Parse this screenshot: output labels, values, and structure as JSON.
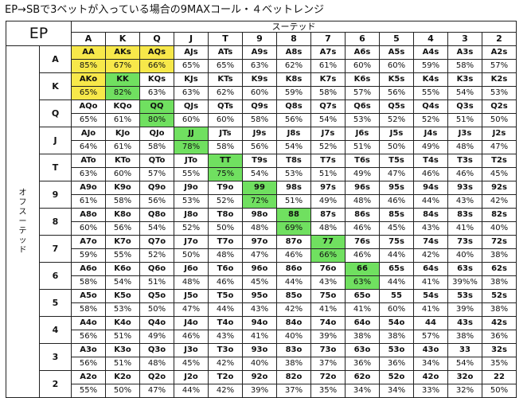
{
  "title": "EP→SBで3ベットが入っている場合の9MAXコール・４ベットレンジ",
  "corner_label": "EP",
  "suited_label": "スーテッド",
  "offsuit_label": "オフスーテッド",
  "ranks": [
    "A",
    "K",
    "Q",
    "J",
    "T",
    "9",
    "8",
    "7",
    "6",
    "5",
    "4",
    "3",
    "2"
  ],
  "colors": {
    "yellow_highlight": "#f7e84a",
    "green_highlight": "#70e060"
  },
  "rows": [
    {
      "rank": "A",
      "cells": [
        {
          "hand": "AA",
          "pct": "85%",
          "hl": "yellow"
        },
        {
          "hand": "AKs",
          "pct": "67%",
          "hl": "yellow"
        },
        {
          "hand": "AQs",
          "pct": "66%",
          "hl": "yellow"
        },
        {
          "hand": "AJs",
          "pct": "65%"
        },
        {
          "hand": "ATs",
          "pct": "65%"
        },
        {
          "hand": "A9s",
          "pct": "63%"
        },
        {
          "hand": "A8s",
          "pct": "62%"
        },
        {
          "hand": "A7s",
          "pct": "61%"
        },
        {
          "hand": "A6s",
          "pct": "60%"
        },
        {
          "hand": "A5s",
          "pct": "60%"
        },
        {
          "hand": "A4s",
          "pct": "59%"
        },
        {
          "hand": "A3s",
          "pct": "58%"
        },
        {
          "hand": "A2s",
          "pct": "57%"
        }
      ]
    },
    {
      "rank": "K",
      "cells": [
        {
          "hand": "AKo",
          "pct": "65%",
          "hl": "yellow"
        },
        {
          "hand": "KK",
          "pct": "82%",
          "hl": "green"
        },
        {
          "hand": "KQs",
          "pct": "63%"
        },
        {
          "hand": "KJs",
          "pct": "63%"
        },
        {
          "hand": "KTs",
          "pct": "62%"
        },
        {
          "hand": "K9s",
          "pct": "60%"
        },
        {
          "hand": "K8s",
          "pct": "59%"
        },
        {
          "hand": "K7s",
          "pct": "58%"
        },
        {
          "hand": "K6s",
          "pct": "57%"
        },
        {
          "hand": "K5s",
          "pct": "56%"
        },
        {
          "hand": "K4s",
          "pct": "55%"
        },
        {
          "hand": "K3s",
          "pct": "54%"
        },
        {
          "hand": "K2s",
          "pct": "53%"
        }
      ]
    },
    {
      "rank": "Q",
      "cells": [
        {
          "hand": "AQo",
          "pct": "65%"
        },
        {
          "hand": "KQo",
          "pct": "61%"
        },
        {
          "hand": "QQ",
          "pct": "80%",
          "hl": "green"
        },
        {
          "hand": "QJs",
          "pct": "60%"
        },
        {
          "hand": "QTs",
          "pct": "60%"
        },
        {
          "hand": "Q9s",
          "pct": "58%"
        },
        {
          "hand": "Q8s",
          "pct": "56%"
        },
        {
          "hand": "Q7s",
          "pct": "54%"
        },
        {
          "hand": "Q6s",
          "pct": "53%"
        },
        {
          "hand": "Q5s",
          "pct": "52%"
        },
        {
          "hand": "Q4s",
          "pct": "52%"
        },
        {
          "hand": "Q3s",
          "pct": "51%"
        },
        {
          "hand": "Q2s",
          "pct": "50%"
        }
      ]
    },
    {
      "rank": "J",
      "cells": [
        {
          "hand": "AJo",
          "pct": "64%"
        },
        {
          "hand": "KJo",
          "pct": "61%"
        },
        {
          "hand": "QJo",
          "pct": "58%"
        },
        {
          "hand": "JJ",
          "pct": "78%",
          "hl": "green"
        },
        {
          "hand": "JTs",
          "pct": "58%"
        },
        {
          "hand": "J9s",
          "pct": "56%"
        },
        {
          "hand": "J8s",
          "pct": "54%"
        },
        {
          "hand": "J7s",
          "pct": "52%"
        },
        {
          "hand": "J6s",
          "pct": "51%"
        },
        {
          "hand": "J5s",
          "pct": "50%"
        },
        {
          "hand": "J4s",
          "pct": "49%"
        },
        {
          "hand": "J3s",
          "pct": "48%"
        },
        {
          "hand": "J2s",
          "pct": "47%"
        }
      ]
    },
    {
      "rank": "T",
      "cells": [
        {
          "hand": "ATo",
          "pct": "63%"
        },
        {
          "hand": "KTo",
          "pct": "60%"
        },
        {
          "hand": "QTo",
          "pct": "57%"
        },
        {
          "hand": "JTo",
          "pct": "55%"
        },
        {
          "hand": "TT",
          "pct": "75%",
          "hl": "green"
        },
        {
          "hand": "T9s",
          "pct": "54%"
        },
        {
          "hand": "T8s",
          "pct": "53%"
        },
        {
          "hand": "T7s",
          "pct": "51%"
        },
        {
          "hand": "T6s",
          "pct": "49%"
        },
        {
          "hand": "T5s",
          "pct": "47%"
        },
        {
          "hand": "T4s",
          "pct": "46%"
        },
        {
          "hand": "T3s",
          "pct": "46%"
        },
        {
          "hand": "T2s",
          "pct": "45%"
        }
      ]
    },
    {
      "rank": "9",
      "cells": [
        {
          "hand": "A9o",
          "pct": "61%"
        },
        {
          "hand": "K9o",
          "pct": "58%"
        },
        {
          "hand": "Q9o",
          "pct": "56%"
        },
        {
          "hand": "J9o",
          "pct": "53%"
        },
        {
          "hand": "T9o",
          "pct": "52%"
        },
        {
          "hand": "99",
          "pct": "72%",
          "hl": "green"
        },
        {
          "hand": "98s",
          "pct": "51%"
        },
        {
          "hand": "97s",
          "pct": "49%"
        },
        {
          "hand": "96s",
          "pct": "48%"
        },
        {
          "hand": "95s",
          "pct": "46%"
        },
        {
          "hand": "94s",
          "pct": "44%"
        },
        {
          "hand": "93s",
          "pct": "43%"
        },
        {
          "hand": "92s",
          "pct": "42%"
        }
      ]
    },
    {
      "rank": "8",
      "cells": [
        {
          "hand": "A8o",
          "pct": "60%"
        },
        {
          "hand": "K8o",
          "pct": "56%"
        },
        {
          "hand": "Q8o",
          "pct": "54%"
        },
        {
          "hand": "J8o",
          "pct": "52%"
        },
        {
          "hand": "T8o",
          "pct": "50%"
        },
        {
          "hand": "98o",
          "pct": "48%"
        },
        {
          "hand": "88",
          "pct": "69%",
          "hl": "green"
        },
        {
          "hand": "87s",
          "pct": "48%"
        },
        {
          "hand": "86s",
          "pct": "46%"
        },
        {
          "hand": "85s",
          "pct": "45%"
        },
        {
          "hand": "84s",
          "pct": "43%"
        },
        {
          "hand": "83s",
          "pct": "41%"
        },
        {
          "hand": "82s",
          "pct": "40%"
        }
      ]
    },
    {
      "rank": "7",
      "cells": [
        {
          "hand": "A7o",
          "pct": "59%"
        },
        {
          "hand": "K7o",
          "pct": "55%"
        },
        {
          "hand": "Q7o",
          "pct": "52%"
        },
        {
          "hand": "J7o",
          "pct": "50%"
        },
        {
          "hand": "T7o",
          "pct": "48%"
        },
        {
          "hand": "97o",
          "pct": "47%"
        },
        {
          "hand": "87o",
          "pct": "46%"
        },
        {
          "hand": "77",
          "pct": "66%",
          "hl": "green"
        },
        {
          "hand": "76s",
          "pct": "46%"
        },
        {
          "hand": "75s",
          "pct": "44%"
        },
        {
          "hand": "74s",
          "pct": "42%"
        },
        {
          "hand": "73s",
          "pct": "40%"
        },
        {
          "hand": "72s",
          "pct": "38%"
        }
      ]
    },
    {
      "rank": "6",
      "cells": [
        {
          "hand": "A6o",
          "pct": "58%"
        },
        {
          "hand": "K6o",
          "pct": "54%"
        },
        {
          "hand": "Q6o",
          "pct": "51%"
        },
        {
          "hand": "J6o",
          "pct": "48%"
        },
        {
          "hand": "T6o",
          "pct": "46%"
        },
        {
          "hand": "96o",
          "pct": "45%"
        },
        {
          "hand": "86o",
          "pct": "44%"
        },
        {
          "hand": "76o",
          "pct": "43%"
        },
        {
          "hand": "66",
          "pct": "63%",
          "hl": "green"
        },
        {
          "hand": "65s",
          "pct": "44%"
        },
        {
          "hand": "64s",
          "pct": "41%"
        },
        {
          "hand": "63s",
          "pct": "39%%"
        },
        {
          "hand": "62s",
          "pct": "38%"
        }
      ]
    },
    {
      "rank": "5",
      "cells": [
        {
          "hand": "A5o",
          "pct": "58%"
        },
        {
          "hand": "K5o",
          "pct": "53%"
        },
        {
          "hand": "Q5o",
          "pct": "50%"
        },
        {
          "hand": "J5o",
          "pct": "47%"
        },
        {
          "hand": "T5o",
          "pct": "44%"
        },
        {
          "hand": "95o",
          "pct": "43%"
        },
        {
          "hand": "85o",
          "pct": "42%"
        },
        {
          "hand": "75o",
          "pct": "41%"
        },
        {
          "hand": "65o",
          "pct": "41%"
        },
        {
          "hand": "55",
          "pct": "60%"
        },
        {
          "hand": "54s",
          "pct": "41%"
        },
        {
          "hand": "53s",
          "pct": "39%"
        },
        {
          "hand": "52s",
          "pct": "38%"
        }
      ]
    },
    {
      "rank": "4",
      "cells": [
        {
          "hand": "A4o",
          "pct": "56%"
        },
        {
          "hand": "K4o",
          "pct": "51%"
        },
        {
          "hand": "Q4o",
          "pct": "49%"
        },
        {
          "hand": "J4o",
          "pct": "46%"
        },
        {
          "hand": "T4o",
          "pct": "43%"
        },
        {
          "hand": "94o",
          "pct": "41%"
        },
        {
          "hand": "84o",
          "pct": "40%"
        },
        {
          "hand": "74o",
          "pct": "39%"
        },
        {
          "hand": "64o",
          "pct": "38%"
        },
        {
          "hand": "54o",
          "pct": "38%"
        },
        {
          "hand": "44",
          "pct": "57%"
        },
        {
          "hand": "43s",
          "pct": "38%"
        },
        {
          "hand": "42s",
          "pct": "36%"
        }
      ]
    },
    {
      "rank": "3",
      "cells": [
        {
          "hand": "A3o",
          "pct": "56%"
        },
        {
          "hand": "K3o",
          "pct": "51%"
        },
        {
          "hand": "Q3o",
          "pct": "48%"
        },
        {
          "hand": "J3o",
          "pct": "45%"
        },
        {
          "hand": "T3o",
          "pct": "42%"
        },
        {
          "hand": "93o",
          "pct": "40%"
        },
        {
          "hand": "83o",
          "pct": "38%"
        },
        {
          "hand": "73o",
          "pct": "37%"
        },
        {
          "hand": "63o",
          "pct": "36%"
        },
        {
          "hand": "53o",
          "pct": "36%"
        },
        {
          "hand": "43o",
          "pct": "34%"
        },
        {
          "hand": "33",
          "pct": "54%"
        },
        {
          "hand": "32s",
          "pct": "35%"
        }
      ]
    },
    {
      "rank": "2",
      "cells": [
        {
          "hand": "A2o",
          "pct": "55%"
        },
        {
          "hand": "K2o",
          "pct": "50%"
        },
        {
          "hand": "Q2o",
          "pct": "47%"
        },
        {
          "hand": "J2o",
          "pct": "44%"
        },
        {
          "hand": "T2o",
          "pct": "42%"
        },
        {
          "hand": "92o",
          "pct": "39%"
        },
        {
          "hand": "82o",
          "pct": "37%"
        },
        {
          "hand": "72o",
          "pct": "35%"
        },
        {
          "hand": "62o",
          "pct": "34%"
        },
        {
          "hand": "52o",
          "pct": "34%"
        },
        {
          "hand": "42o",
          "pct": "33%"
        },
        {
          "hand": "32o",
          "pct": "32%"
        },
        {
          "hand": "22",
          "pct": "50%"
        }
      ]
    }
  ]
}
